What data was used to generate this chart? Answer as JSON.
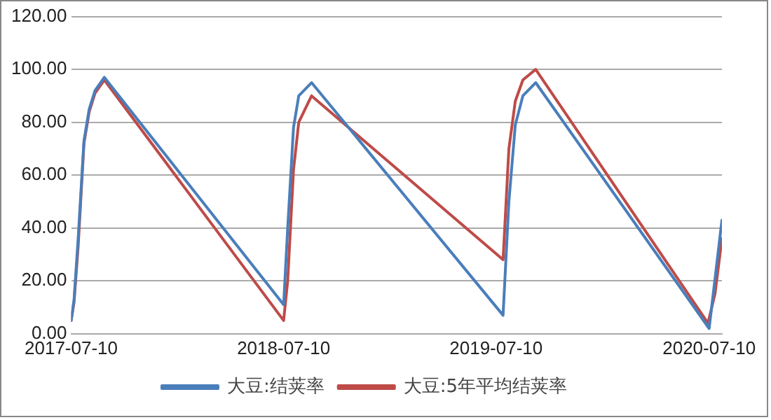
{
  "chart_data": {
    "type": "line",
    "xlim": [
      "2017-07-10",
      "2020-08-01"
    ],
    "xticks": [
      "2017-07-10",
      "2018-07-10",
      "2019-07-10",
      "2020-07-10"
    ],
    "ylim": [
      0,
      120
    ],
    "yticks": [
      {
        "value": 0,
        "label": "0.00"
      },
      {
        "value": 20,
        "label": "20.00"
      },
      {
        "value": 40,
        "label": "40.00"
      },
      {
        "value": 60,
        "label": "60.00"
      },
      {
        "value": 80,
        "label": "80.00"
      },
      {
        "value": 100,
        "label": "100.00"
      },
      {
        "value": 120,
        "label": "120.00"
      }
    ],
    "grid": "y",
    "legend": "bottom",
    "marker": "none",
    "line_style": "solid",
    "series": [
      {
        "name": "大豆:结荚率",
        "color": "#4a7ebb",
        "x": [
          "2017-07-10",
          "2017-07-15",
          "2017-07-22",
          "2017-08-01",
          "2017-08-10",
          "2017-08-20",
          "2017-09-05",
          "2018-07-10",
          "2018-07-17",
          "2018-07-27",
          "2018-08-05",
          "2018-08-27",
          "2019-07-22",
          "2019-08-01",
          "2019-08-12",
          "2019-08-25",
          "2019-09-16",
          "2020-07-10",
          "2020-08-01"
        ],
        "values": [
          5,
          13,
          36,
          73,
          85,
          92,
          97,
          11,
          40,
          78,
          90,
          95,
          7,
          50,
          79,
          90,
          95,
          2,
          43
        ]
      },
      {
        "name": "大豆:5年平均结荚率",
        "color": "#be4b48",
        "x": [
          "2017-07-10",
          "2017-07-15",
          "2017-07-22",
          "2017-08-01",
          "2017-08-10",
          "2017-08-20",
          "2017-09-05",
          "2018-07-10",
          "2018-07-17",
          "2018-07-27",
          "2018-08-05",
          "2018-08-27",
          "2019-07-22",
          "2019-08-01",
          "2019-08-12",
          "2019-08-25",
          "2019-09-16",
          "2020-07-08",
          "2020-07-20",
          "2020-08-01"
        ],
        "values": [
          5,
          12,
          33,
          72,
          84,
          91,
          96,
          5,
          20,
          62,
          80,
          90,
          28,
          70,
          88,
          96,
          100,
          4,
          15,
          36
        ]
      }
    ]
  }
}
